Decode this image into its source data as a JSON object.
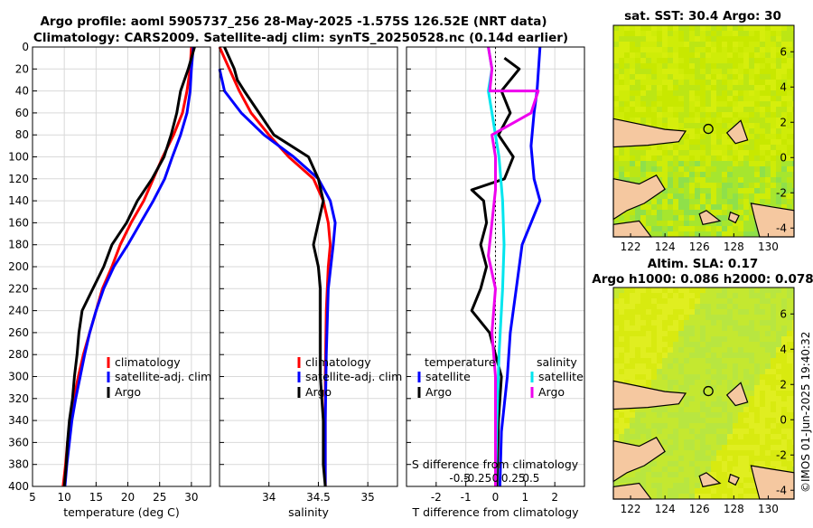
{
  "header": {
    "title_line1": "Argo profile: aoml 5905737_256 28-May-2025 -1.575S 126.52E (NRT data)",
    "title_line2": "Climatology: CARS2009. Satellite-adj clim: synTS_20250528.nc (0.14d earlier)"
  },
  "colors": {
    "climatology": "#ff0000",
    "satellite": "#0000ff",
    "argo": "#000000",
    "sal_satellite": "#00e5ee",
    "sal_argo": "#ee00ee",
    "land": "#f5c8a0",
    "sea": "#c8e800"
  },
  "depth_axis": {
    "ticks": [
      "0",
      "20",
      "40",
      "60",
      "80",
      "100",
      "120",
      "140",
      "160",
      "180",
      "200",
      "220",
      "240",
      "260",
      "280",
      "300",
      "320",
      "340",
      "360",
      "380",
      "400"
    ]
  },
  "chart_data": [
    {
      "type": "line",
      "name": "temperature-panel",
      "xlabel": "temperature (deg C)",
      "ylabel": "",
      "xlim": [
        5,
        33
      ],
      "ylim": [
        0,
        400
      ],
      "xticks": [
        "5",
        "10",
        "15",
        "20",
        "25",
        "30"
      ],
      "legend": [
        "climatology",
        "satellite-adj. clim",
        "Argo"
      ],
      "series": [
        {
          "name": "climatology",
          "color": "#ff0000",
          "points": [
            [
              30,
              0
            ],
            [
              29.8,
              20
            ],
            [
              29.3,
              40
            ],
            [
              28.6,
              60
            ],
            [
              27.2,
              80
            ],
            [
              25.5,
              100
            ],
            [
              24,
              120
            ],
            [
              22.5,
              140
            ],
            [
              20.5,
              160
            ],
            [
              18.8,
              180
            ],
            [
              17.5,
              200
            ],
            [
              16,
              220
            ],
            [
              15,
              240
            ],
            [
              14,
              260
            ],
            [
              13,
              280
            ],
            [
              12.2,
              300
            ],
            [
              11.5,
              320
            ],
            [
              11,
              340
            ],
            [
              10.5,
              360
            ],
            [
              10.2,
              380
            ],
            [
              9.8,
              400
            ]
          ]
        },
        {
          "name": "satellite-adj. clim",
          "color": "#0000ff",
          "points": [
            [
              30.3,
              0
            ],
            [
              30,
              20
            ],
            [
              29.8,
              40
            ],
            [
              29.3,
              60
            ],
            [
              28.3,
              80
            ],
            [
              27,
              100
            ],
            [
              25.8,
              120
            ],
            [
              24,
              140
            ],
            [
              22,
              160
            ],
            [
              20,
              180
            ],
            [
              17.8,
              200
            ],
            [
              16.2,
              220
            ],
            [
              15,
              240
            ],
            [
              14,
              260
            ],
            [
              13.2,
              280
            ],
            [
              12.5,
              300
            ],
            [
              11.8,
              320
            ],
            [
              11.2,
              340
            ],
            [
              10.8,
              360
            ],
            [
              10.4,
              380
            ],
            [
              10.1,
              400
            ]
          ]
        },
        {
          "name": "Argo",
          "color": "#000000",
          "points": [
            [
              30.5,
              0
            ],
            [
              29.5,
              20
            ],
            [
              28.3,
              40
            ],
            [
              27.7,
              60
            ],
            [
              26.8,
              80
            ],
            [
              25.7,
              100
            ],
            [
              23.8,
              120
            ],
            [
              21.5,
              140
            ],
            [
              19.8,
              160
            ],
            [
              17.5,
              180
            ],
            [
              16.2,
              200
            ],
            [
              14.5,
              220
            ],
            [
              12.8,
              240
            ],
            [
              12.3,
              260
            ],
            [
              12,
              280
            ],
            [
              11.6,
              300
            ],
            [
              11.3,
              320
            ],
            [
              10.8,
              340
            ],
            [
              10.5,
              360
            ],
            [
              10.3,
              380
            ],
            [
              10,
              400
            ]
          ]
        }
      ]
    },
    {
      "type": "line",
      "name": "salinity-panel",
      "xlabel": "salinity",
      "ylabel": "",
      "xlim": [
        33.5,
        35.3
      ],
      "ylim": [
        0,
        400
      ],
      "xticks": [
        "34",
        "34.5",
        "35"
      ],
      "legend": [
        "climatology",
        "satellite-adj. clim",
        "Argo"
      ],
      "series": [
        {
          "name": "climatology",
          "color": "#ff0000",
          "points": [
            [
              33.5,
              0
            ],
            [
              33.6,
              20
            ],
            [
              33.7,
              40
            ],
            [
              33.82,
              60
            ],
            [
              34,
              80
            ],
            [
              34.2,
              100
            ],
            [
              34.45,
              120
            ],
            [
              34.55,
              140
            ],
            [
              34.6,
              160
            ],
            [
              34.62,
              180
            ],
            [
              34.6,
              200
            ],
            [
              34.58,
              240
            ],
            [
              34.57,
              300
            ],
            [
              34.57,
              360
            ],
            [
              34.57,
              400
            ]
          ]
        },
        {
          "name": "satellite-adj. clim",
          "color": "#0000ff",
          "points": [
            [
              33.5,
              20
            ],
            [
              33.55,
              40
            ],
            [
              33.72,
              60
            ],
            [
              33.95,
              80
            ],
            [
              34.25,
              100
            ],
            [
              34.5,
              120
            ],
            [
              34.62,
              140
            ],
            [
              34.67,
              160
            ],
            [
              34.65,
              180
            ],
            [
              34.6,
              220
            ],
            [
              34.58,
              280
            ],
            [
              34.57,
              340
            ],
            [
              34.57,
              400
            ]
          ]
        },
        {
          "name": "Argo",
          "color": "#000000",
          "points": [
            [
              33.55,
              0
            ],
            [
              33.65,
              20
            ],
            [
              33.68,
              30
            ],
            [
              33.75,
              40
            ],
            [
              33.9,
              60
            ],
            [
              34.05,
              80
            ],
            [
              34.4,
              100
            ],
            [
              34.5,
              120
            ],
            [
              34.55,
              140
            ],
            [
              34.5,
              160
            ],
            [
              34.45,
              180
            ],
            [
              34.5,
              200
            ],
            [
              34.52,
              220
            ],
            [
              34.52,
              260
            ],
            [
              34.52,
              300
            ],
            [
              34.55,
              340
            ],
            [
              34.55,
              380
            ],
            [
              34.57,
              400
            ]
          ]
        }
      ]
    },
    {
      "type": "line",
      "name": "difference-panel",
      "xlabel": "T difference from climatology",
      "top_xlabel": "S difference from climatology",
      "xlim": [
        -3,
        3
      ],
      "ylim": [
        0,
        400
      ],
      "xticks": [
        "-2",
        "-1",
        "0",
        "1",
        "2"
      ],
      "top_xticks": [
        "-0.5",
        "-0.25",
        "0",
        "0.25",
        "0.5"
      ],
      "legend_temperature_title": "temperature",
      "legend_salinity_title": "salinity",
      "legend_temperature": [
        "satellite",
        "Argo"
      ],
      "legend_salinity": [
        "satellite",
        "Argo"
      ],
      "series": [
        {
          "name": "temperature satellite",
          "color": "#0000ff",
          "points": [
            [
              1.5,
              0
            ],
            [
              1.4,
              40
            ],
            [
              1.3,
              60
            ],
            [
              1.2,
              90
            ],
            [
              1.3,
              120
            ],
            [
              1.5,
              140
            ],
            [
              1.2,
              160
            ],
            [
              0.9,
              180
            ],
            [
              0.7,
              220
            ],
            [
              0.5,
              260
            ],
            [
              0.4,
              300
            ],
            [
              0.2,
              350
            ],
            [
              0.15,
              400
            ]
          ]
        },
        {
          "name": "temperature Argo",
          "color": "#000000",
          "points": [
            [
              0.3,
              10
            ],
            [
              0.8,
              20
            ],
            [
              0.2,
              40
            ],
            [
              0.5,
              60
            ],
            [
              0.1,
              80
            ],
            [
              0.6,
              100
            ],
            [
              0.3,
              120
            ],
            [
              -0.8,
              130
            ],
            [
              -0.4,
              140
            ],
            [
              -0.3,
              160
            ],
            [
              -0.5,
              180
            ],
            [
              -0.3,
              200
            ],
            [
              -0.5,
              220
            ],
            [
              -0.8,
              240
            ],
            [
              -0.2,
              260
            ],
            [
              0.2,
              300
            ],
            [
              0.1,
              340
            ],
            [
              0.05,
              400
            ]
          ]
        },
        {
          "name": "salinity satellite",
          "color": "#00e5ee",
          "points": [
            [
              -0.1,
              0
            ],
            [
              -0.05,
              20
            ],
            [
              -0.1,
              40
            ],
            [
              -0.05,
              60
            ],
            [
              0,
              80
            ],
            [
              0.05,
              100
            ],
            [
              0.1,
              140
            ],
            [
              0.12,
              180
            ],
            [
              0.1,
              220
            ],
            [
              0.05,
              280
            ],
            [
              0.02,
              340
            ],
            [
              0,
              400
            ]
          ]
        },
        {
          "name": "salinity Argo",
          "color": "#ee00ee",
          "points": [
            [
              -0.1,
              0
            ],
            [
              -0.05,
              20
            ],
            [
              -0.08,
              40
            ],
            [
              0.6,
              40
            ],
            [
              0.5,
              60
            ],
            [
              -0.05,
              80
            ],
            [
              0,
              100
            ],
            [
              0,
              130
            ],
            [
              -0.05,
              160
            ],
            [
              -0.1,
              190
            ],
            [
              0,
              220
            ],
            [
              -0.05,
              260
            ],
            [
              0,
              300
            ],
            [
              0,
              340
            ],
            [
              0,
              400
            ]
          ]
        }
      ]
    },
    {
      "type": "heatmap",
      "name": "sst-map",
      "title": "sat. SST: 30.4 Argo: 30",
      "xticks": [
        "122",
        "124",
        "126",
        "128",
        "130"
      ],
      "yticks": [
        "6",
        "4",
        "2",
        "0",
        "-2",
        "-4"
      ],
      "xlim": [
        121,
        131.5
      ],
      "ylim": [
        -4.5,
        7.5
      ],
      "argo_position": [
        126.52,
        -1.575
      ]
    },
    {
      "type": "heatmap",
      "name": "sla-map",
      "title": "Altim. SLA: 0.17",
      "subtitle": "Argo h1000: 0.086 h2000: 0.078",
      "xticks": [
        "122",
        "124",
        "126",
        "128",
        "130"
      ],
      "yticks": [
        "6",
        "4",
        "2",
        "0",
        "-2",
        "-4"
      ],
      "xlim": [
        121,
        131.5
      ],
      "ylim": [
        -4.5,
        7.5
      ],
      "argo_position": [
        126.52,
        -1.575
      ]
    }
  ],
  "footer": {
    "credit": "©IMOS 01-Jun-2025 19:40:32"
  }
}
